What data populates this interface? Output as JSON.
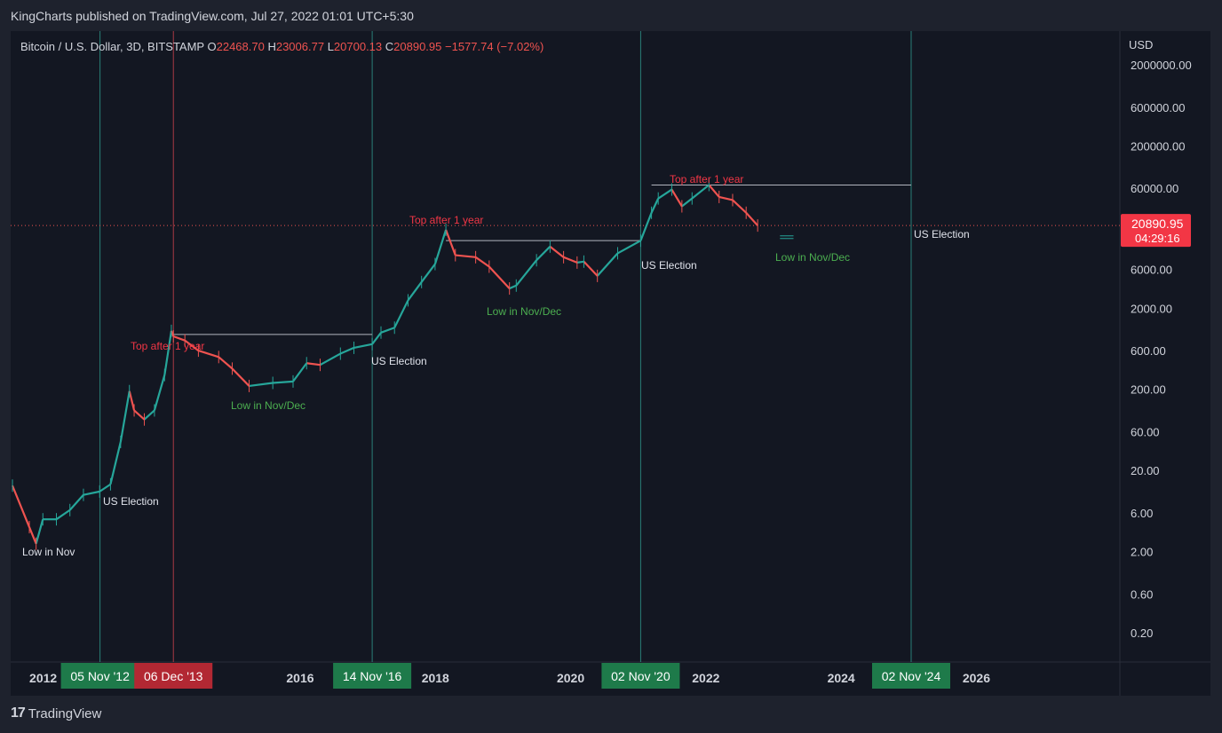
{
  "header": {
    "published": "KingCharts published on TradingView.com, Jul 27, 2022 01:01 UTC+5:30"
  },
  "footer": {
    "brand": "TradingView",
    "logo_icon": "tradingview-logo-icon"
  },
  "legend": {
    "symbol": "Bitcoin / U.S. Dollar, 3D, BITSTAMP",
    "o_label": "O",
    "o_value": "22468.70",
    "h_label": "H",
    "h_value": "23006.77",
    "l_label": "L",
    "l_value": "20700.13",
    "c_label": "C",
    "c_value": "20890.95",
    "change": "−1577.74 (−7.02%)"
  },
  "colors": {
    "bg": "#131722",
    "up": "#26a69a",
    "down": "#ef5350",
    "text": "#d1d4dc",
    "green_label": "#4caf50",
    "red_label": "#f23645",
    "teal_vline": "#2a7f78",
    "red_vline": "#a83a45"
  },
  "price_axis": {
    "currency": "USD",
    "ticks": [
      "2000000.00",
      "600000.00",
      "200000.00",
      "60000.00",
      "20000.00",
      "6000.00",
      "2000.00",
      "600.00",
      "200.00",
      "60.00",
      "20.00",
      "6.00",
      "2.00",
      "0.60",
      "0.20"
    ],
    "last_price": "20890.95",
    "countdown": "04:29:16"
  },
  "time_axis": {
    "years": [
      "2012",
      "2016",
      "2018",
      "2020",
      "2022",
      "2024",
      "2026"
    ],
    "badges": [
      {
        "label": "05 Nov '12",
        "kind": "green"
      },
      {
        "label": "06 Dec '13",
        "kind": "red"
      },
      {
        "label": "14 Nov '16",
        "kind": "green"
      },
      {
        "label": "02 Nov '20",
        "kind": "green"
      },
      {
        "label": "02 Nov '24",
        "kind": "green"
      }
    ]
  },
  "annotations": {
    "low_nov": "Low in Nov",
    "us_election": "US Election",
    "top_after": "Top after 1 year",
    "low_nov_dec": "Low in Nov/Dec"
  },
  "chart_data": {
    "type": "line",
    "title": "Bitcoin / U.S. Dollar, 3D, BITSTAMP",
    "ylabel": "USD",
    "yscale": "log",
    "series": [
      {
        "name": "Bitcoin / U.S. Dollar",
        "x": [
          2011.55,
          2011.8,
          2011.9,
          2012.0,
          2012.2,
          2012.4,
          2012.6,
          2012.84,
          2013.0,
          2013.15,
          2013.28,
          2013.35,
          2013.5,
          2013.65,
          2013.8,
          2013.9,
          2013.93,
          2014.1,
          2014.3,
          2014.6,
          2014.8,
          2015.05,
          2015.4,
          2015.7,
          2015.9,
          2016.1,
          2016.4,
          2016.6,
          2016.87,
          2017.0,
          2017.2,
          2017.4,
          2017.6,
          2017.8,
          2017.96,
          2018.1,
          2018.4,
          2018.6,
          2018.9,
          2019.0,
          2019.3,
          2019.5,
          2019.7,
          2019.9,
          2020.0,
          2020.2,
          2020.5,
          2020.84,
          2021.0,
          2021.1,
          2021.3,
          2021.45,
          2021.6,
          2021.85,
          2022.0,
          2022.2,
          2022.4,
          2022.57
        ],
        "y": [
          13,
          4,
          2.5,
          5,
          5,
          6.5,
          10,
          11,
          13.5,
          45,
          190,
          110,
          85,
          110,
          300,
          1050,
          900,
          800,
          600,
          500,
          360,
          220,
          240,
          250,
          420,
          400,
          550,
          650,
          720,
          1000,
          1150,
          2500,
          4200,
          7000,
          18500,
          9000,
          8500,
          6500,
          3500,
          3800,
          7800,
          11500,
          8500,
          7300,
          7500,
          5000,
          9500,
          13600,
          30000,
          45000,
          58000,
          36000,
          45000,
          66000,
          47000,
          43000,
          30000,
          20890.95
        ]
      }
    ],
    "vertical_markers": [
      {
        "date": "05 Nov '12",
        "label": "US Election"
      },
      {
        "date": "06 Dec '13",
        "label": ""
      },
      {
        "date": "14 Nov '16",
        "label": "US Election"
      },
      {
        "date": "02 Nov '20",
        "label": "US Election"
      },
      {
        "date": "02 Nov '24",
        "label": "US Election"
      }
    ],
    "horizontal_levels": [
      {
        "from": 2013.93,
        "to": 2016.87,
        "value": 950
      },
      {
        "from": 2017.96,
        "to": 2020.84,
        "value": 13600
      },
      {
        "from": 2021.0,
        "to": 2024.84,
        "value": 66000
      }
    ],
    "projected_low": {
      "from": 2022.9,
      "to": 2023.1,
      "value": 15000
    },
    "xlim": [
      2011.55,
      2027.9
    ],
    "ylim": [
      0.1,
      5000000
    ],
    "grid": false
  }
}
